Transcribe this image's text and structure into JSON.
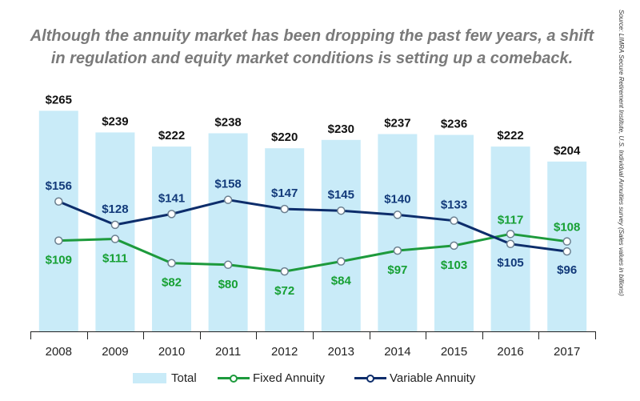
{
  "headline": {
    "line1": "Although the annuity market has been dropping the past few years, a shift",
    "line2": "in regulation and equity market conditions is setting up a comeback."
  },
  "source_note": "Source: LIMRA Secure Retirement Institute, U.S. Individual Annuities survey  (Sales values in billions)",
  "colors": {
    "total_bar": "#c9ebf8",
    "fixed": "#1d9a3c",
    "fixed_label": "#17a034",
    "variable": "#0d2d6b",
    "variable_label": "#123a7a",
    "axis": "#222222"
  },
  "chart_data": {
    "type": "bar",
    "categories": [
      "2008",
      "2009",
      "2010",
      "2011",
      "2012",
      "2013",
      "2014",
      "2015",
      "2016",
      "2017"
    ],
    "ylim": [
      0,
      265
    ],
    "series": [
      {
        "name": "Total",
        "type": "bar",
        "values": [
          265,
          239,
          222,
          238,
          220,
          230,
          237,
          236,
          222,
          204
        ],
        "labels": [
          "$265",
          "$239",
          "$222",
          "$238",
          "$220",
          "$230",
          "$237",
          "$236",
          "$222",
          "$204"
        ]
      },
      {
        "name": "Fixed Annuity",
        "type": "line",
        "values": [
          109,
          111,
          82,
          80,
          72,
          84,
          97,
          103,
          117,
          108
        ],
        "labels": [
          "$109",
          "$111",
          "$82",
          "$80",
          "$72",
          "$84",
          "$97",
          "$103",
          "$117",
          "$108"
        ]
      },
      {
        "name": "Variable Annuity",
        "type": "line",
        "values": [
          156,
          128,
          141,
          158,
          147,
          145,
          140,
          133,
          105,
          96
        ],
        "labels": [
          "$156",
          "$128",
          "$141",
          "$158",
          "$147",
          "$145",
          "$140",
          "$133",
          "$105",
          "$96"
        ]
      }
    ],
    "legend": [
      "Total",
      "Fixed Annuity",
      "Variable Annuity"
    ],
    "legend_position": "bottom"
  }
}
